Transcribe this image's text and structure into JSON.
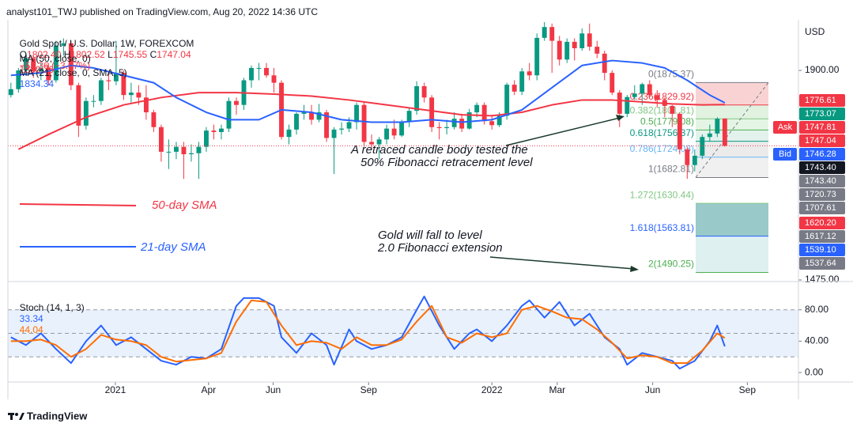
{
  "header": {
    "published": "analyst101_TWJ published on TradingView.com, Aug 20, 2022 14:36 UTC",
    "logo": "TradingView"
  },
  "chart_data": {
    "type": "candlestick",
    "title": "Gold Spot / U.S. Dollar, 1W, FOREXCOM",
    "ohlc_legend": [
      {
        "key": "O",
        "label": "1802.40"
      },
      {
        "key": "H",
        "label": "1802.52"
      },
      {
        "key": "L",
        "label": "1745.55"
      },
      {
        "key": "C",
        "label": "1747.04"
      }
    ],
    "change": "−55.36 (−3.07%)",
    "up_color": "#089981",
    "down_color": "#f23645",
    "xlim": [
      -0.4,
      104.8
    ],
    "xticks": [
      {
        "value": 13.9,
        "label": "2021"
      },
      {
        "value": 26.3,
        "label": "Apr"
      },
      {
        "value": 34.9,
        "label": "Jun"
      },
      {
        "value": 47.6,
        "label": "Sep"
      },
      {
        "value": 64,
        "label": "2022"
      },
      {
        "value": 72.7,
        "label": "Mar"
      },
      {
        "value": 85.4,
        "label": "Jun"
      },
      {
        "value": 98,
        "label": "Sep"
      }
    ],
    "ylim": [
      1473.4,
      2002.7
    ],
    "yticks": [
      {
        "value": 1900,
        "label": "1900.00"
      },
      {
        "value": 1475,
        "label": "1475.00"
      }
    ],
    "y_unit": "USD",
    "ohlc": [
      [
        1850,
        1875,
        1845,
        1862
      ],
      [
        1862,
        1905,
        1855,
        1900
      ],
      [
        1900,
        1935,
        1890,
        1925
      ],
      [
        1925,
        1930,
        1885,
        1898
      ],
      [
        1898,
        1915,
        1880,
        1905
      ],
      [
        1905,
        1915,
        1870,
        1880
      ],
      [
        1880,
        1960,
        1875,
        1950
      ],
      [
        1950,
        1965,
        1930,
        1955
      ],
      [
        1955,
        1960,
        1860,
        1870
      ],
      [
        1870,
        1875,
        1765,
        1788
      ],
      [
        1788,
        1845,
        1780,
        1838
      ],
      [
        1838,
        1850,
        1825,
        1838
      ],
      [
        1838,
        1885,
        1830,
        1880
      ],
      [
        1880,
        1895,
        1860,
        1878
      ],
      [
        1878,
        1960,
        1870,
        1895
      ],
      [
        1895,
        1900,
        1840,
        1850
      ],
      [
        1850,
        1875,
        1835,
        1855
      ],
      [
        1855,
        1870,
        1830,
        1845
      ],
      [
        1845,
        1870,
        1800,
        1815
      ],
      [
        1815,
        1820,
        1775,
        1785
      ],
      [
        1785,
        1790,
        1715,
        1735
      ],
      [
        1735,
        1760,
        1700,
        1735
      ],
      [
        1735,
        1755,
        1720,
        1745
      ],
      [
        1745,
        1755,
        1680,
        1730
      ],
      [
        1730,
        1750,
        1715,
        1732
      ],
      [
        1732,
        1755,
        1680,
        1745
      ],
      [
        1745,
        1785,
        1735,
        1778
      ],
      [
        1778,
        1790,
        1760,
        1775
      ],
      [
        1775,
        1790,
        1760,
        1782
      ],
      [
        1782,
        1845,
        1775,
        1838
      ],
      [
        1838,
        1845,
        1810,
        1830
      ],
      [
        1830,
        1885,
        1820,
        1880
      ],
      [
        1880,
        1910,
        1865,
        1905
      ],
      [
        1905,
        1915,
        1880,
        1905
      ],
      [
        1905,
        1915,
        1885,
        1890
      ],
      [
        1890,
        1905,
        1855,
        1875
      ],
      [
        1875,
        1880,
        1760,
        1765
      ],
      [
        1765,
        1790,
        1750,
        1780
      ],
      [
        1780,
        1815,
        1770,
        1812
      ],
      [
        1812,
        1830,
        1800,
        1815
      ],
      [
        1815,
        1830,
        1790,
        1800
      ],
      [
        1800,
        1832,
        1795,
        1815
      ],
      [
        1815,
        1820,
        1755,
        1763
      ],
      [
        1763,
        1785,
        1690,
        1780
      ],
      [
        1780,
        1795,
        1770,
        1782
      ],
      [
        1782,
        1805,
        1775,
        1795
      ],
      [
        1795,
        1835,
        1780,
        1830
      ],
      [
        1830,
        1835,
        1745,
        1755
      ],
      [
        1755,
        1770,
        1740,
        1750
      ],
      [
        1750,
        1765,
        1720,
        1760
      ],
      [
        1760,
        1790,
        1750,
        1782
      ],
      [
        1782,
        1800,
        1760,
        1768
      ],
      [
        1768,
        1800,
        1765,
        1795
      ],
      [
        1795,
        1825,
        1785,
        1818
      ],
      [
        1818,
        1878,
        1810,
        1868
      ],
      [
        1868,
        1875,
        1835,
        1845
      ],
      [
        1845,
        1850,
        1775,
        1785
      ],
      [
        1785,
        1795,
        1760,
        1783
      ],
      [
        1783,
        1800,
        1770,
        1785
      ],
      [
        1785,
        1815,
        1780,
        1802
      ],
      [
        1802,
        1812,
        1775,
        1782
      ],
      [
        1782,
        1822,
        1780,
        1815
      ],
      [
        1815,
        1835,
        1805,
        1830
      ],
      [
        1830,
        1835,
        1790,
        1797
      ],
      [
        1797,
        1810,
        1780,
        1789
      ],
      [
        1789,
        1815,
        1785,
        1808
      ],
      [
        1808,
        1875,
        1800,
        1871
      ],
      [
        1871,
        1880,
        1850,
        1857
      ],
      [
        1857,
        1905,
        1850,
        1898
      ],
      [
        1898,
        1915,
        1880,
        1890
      ],
      [
        1890,
        1975,
        1880,
        1966
      ],
      [
        1966,
        1998,
        1960,
        1988
      ],
      [
        1988,
        1995,
        1895,
        1960
      ],
      [
        1960,
        1970,
        1910,
        1922
      ],
      [
        1922,
        1965,
        1915,
        1958
      ],
      [
        1958,
        1965,
        1920,
        1945
      ],
      [
        1945,
        1985,
        1940,
        1975
      ],
      [
        1975,
        1995,
        1940,
        1948
      ],
      [
        1948,
        1960,
        1925,
        1934
      ],
      [
        1934,
        1940,
        1880,
        1895
      ],
      [
        1895,
        1900,
        1850,
        1855
      ],
      [
        1855,
        1860,
        1785,
        1812
      ],
      [
        1812,
        1850,
        1805,
        1846
      ],
      [
        1846,
        1870,
        1840,
        1853
      ],
      [
        1853,
        1875,
        1830,
        1872
      ],
      [
        1872,
        1880,
        1845,
        1850
      ],
      [
        1850,
        1860,
        1825,
        1840
      ],
      [
        1840,
        1845,
        1805,
        1828
      ],
      [
        1828,
        1830,
        1785,
        1812
      ],
      [
        1812,
        1815,
        1730,
        1740
      ],
      [
        1740,
        1745,
        1680,
        1708
      ],
      [
        1708,
        1740,
        1695,
        1727
      ],
      [
        1727,
        1770,
        1720,
        1765
      ],
      [
        1765,
        1790,
        1755,
        1772
      ],
      [
        1772,
        1805,
        1765,
        1802
      ],
      [
        1802.4,
        1802.52,
        1745.55,
        1747.04
      ]
    ],
    "ma": [
      {
        "name": "MA (50, close, 0)",
        "color": "#f23645",
        "x": [
          1,
          5,
          10,
          15,
          20,
          25,
          30,
          35,
          40,
          45,
          50,
          55,
          60,
          64,
          68,
          72,
          76,
          80,
          84,
          88,
          92,
          95
        ],
        "values": [
          1740,
          1770,
          1805,
          1830,
          1845,
          1855,
          1855,
          1852,
          1848,
          1840,
          1830,
          1820,
          1810,
          1808,
          1815,
          1830,
          1840,
          1840,
          1836,
          1832,
          1830,
          1830.76
        ]
      },
      {
        "name": "MA (21, close, 0, SMA, 5)",
        "color": "#2962ff",
        "x": [
          0,
          4,
          8,
          11,
          15,
          19,
          22,
          26,
          29,
          33,
          36,
          40,
          44,
          48,
          52,
          56,
          60,
          64,
          68,
          72,
          76,
          80,
          84,
          87,
          90,
          93,
          95
        ],
        "values": [
          1890,
          1895,
          1910,
          1905,
          1890,
          1875,
          1845,
          1815,
          1800,
          1800,
          1820,
          1815,
          1800,
          1795,
          1795,
          1800,
          1795,
          1800,
          1820,
          1865,
          1910,
          1920,
          1915,
          1905,
          1880,
          1850,
          1834.34
        ]
      }
    ],
    "fib": [
      {
        "value": 1875.37,
        "label": "0(1875.37)",
        "color": "#787b86"
      },
      {
        "value": 1829.92,
        "label": "0.236(1829.92)",
        "color": "#f23645"
      },
      {
        "value": 1801.81,
        "label": "0.382(1801.81)",
        "color": "#81c784"
      },
      {
        "value": 1779.08,
        "label": "0.5(1779.08)",
        "color": "#4caf50"
      },
      {
        "value": 1756.37,
        "label": "0.618(1756.37)",
        "color": "#089981"
      },
      {
        "value": 1724.03,
        "label": "0.786(1724.03)",
        "color": "#64b5f6"
      },
      {
        "value": 1682.81,
        "label": "1(1682.81)",
        "color": "#787b86"
      },
      {
        "value": 1630.44,
        "label": "1.272(1630.44)",
        "color": "#81c784"
      },
      {
        "value": 1563.81,
        "label": "1.618(1563.81)",
        "color": "#2962ff"
      },
      {
        "value": 1490.25,
        "label": "2(1490.25)",
        "color": "#4caf50"
      }
    ],
    "price_tags": [
      {
        "value": 1776.61,
        "label": "1776.61",
        "color": "#f23645"
      },
      {
        "value": 1773.07,
        "label": "1773.07",
        "color": "#089981"
      },
      {
        "value": 1747.81,
        "label": "1747.81",
        "color": "#f23645",
        "tag": "Ask"
      },
      {
        "value": 1747.04,
        "label": "1747.04",
        "color": "#f23645"
      },
      {
        "value": 1746.28,
        "label": "1746.28",
        "color": "#2962ff",
        "tag": "Bid"
      },
      {
        "value": 1743.4,
        "label": "1743.40",
        "color": "#131722"
      },
      {
        "value": 1743.4,
        "label": "1743.40",
        "color": "#787b86"
      },
      {
        "value": 1720.73,
        "label": "1720.73",
        "color": "#787b86"
      },
      {
        "value": 1707.61,
        "label": "1707.61",
        "color": "#787b86"
      },
      {
        "value": 1620.2,
        "label": "1620.20",
        "color": "#f23645"
      },
      {
        "value": 1617.12,
        "label": "1617.12",
        "color": "#787b86"
      },
      {
        "value": 1539.1,
        "label": "1539.10",
        "color": "#2962ff"
      },
      {
        "value": 1537.64,
        "label": "1537.64",
        "color": "#787b86"
      }
    ],
    "annotations": [
      "A retraced candle body tested the",
      "50% Fibonacci retracement level",
      "Gold will fall to  level",
      "2.0 Fibonacci extension",
      "50-day SMA",
      "21-day SMA"
    ],
    "stoch": {
      "title": "Stoch (14, 1, 3)",
      "ylim": [
        -11,
        115
      ],
      "yticks": [
        {
          "value": 80,
          "label": "80.00"
        },
        {
          "value": 40,
          "label": "40.00"
        },
        {
          "value": 0,
          "label": "0.00"
        }
      ],
      "band": [
        20,
        80
      ],
      "levels": [
        20,
        50,
        80
      ],
      "series": [
        {
          "color": "#2962ff",
          "x": [
            0,
            2,
            4,
            6,
            8,
            10,
            12,
            14,
            16,
            18,
            20,
            22,
            24,
            26,
            28,
            30,
            31,
            33,
            35,
            36,
            38,
            40,
            42,
            43,
            45,
            46,
            48,
            50,
            52,
            54,
            55,
            57,
            59,
            61,
            62,
            64,
            66,
            68,
            69,
            71,
            73,
            75,
            77,
            79,
            81,
            82,
            84,
            86,
            88,
            89,
            91,
            93,
            94,
            95
          ],
          "values": [
            45,
            35,
            50,
            30,
            12,
            40,
            60,
            35,
            45,
            30,
            15,
            10,
            20,
            18,
            30,
            85,
            95,
            95,
            85,
            45,
            25,
            50,
            35,
            10,
            55,
            40,
            30,
            35,
            45,
            80,
            97,
            60,
            30,
            50,
            55,
            40,
            60,
            85,
            92,
            70,
            90,
            60,
            75,
            45,
            30,
            10,
            25,
            20,
            15,
            5,
            15,
            40,
            60,
            33.34
          ]
        },
        {
          "color": "#ff6d00",
          "x": [
            0,
            2,
            4,
            6,
            8,
            10,
            12,
            14,
            16,
            18,
            20,
            22,
            24,
            26,
            28,
            30,
            32,
            34,
            36,
            38,
            40,
            42,
            44,
            46,
            48,
            50,
            52,
            54,
            56,
            58,
            60,
            62,
            64,
            66,
            68,
            70,
            72,
            74,
            76,
            78,
            80,
            82,
            84,
            86,
            88,
            90,
            92,
            94,
            95
          ],
          "values": [
            40,
            40,
            42,
            35,
            20,
            30,
            48,
            42,
            40,
            35,
            20,
            14,
            16,
            18,
            25,
            65,
            92,
            90,
            60,
            35,
            40,
            38,
            30,
            45,
            35,
            35,
            42,
            65,
            85,
            45,
            38,
            50,
            45,
            50,
            80,
            85,
            78,
            70,
            68,
            55,
            38,
            18,
            22,
            20,
            12,
            12,
            28,
            50,
            44.04
          ]
        }
      ]
    }
  }
}
